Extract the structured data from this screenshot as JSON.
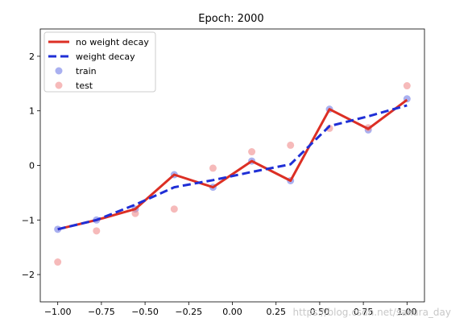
{
  "chart_data": {
    "type": "line",
    "title": "Epoch: 2000",
    "xlabel": "",
    "ylabel": "",
    "xlim": [
      -1.1,
      1.1
    ],
    "ylim": [
      -2.5,
      2.5
    ],
    "xticks": [
      -1.0,
      -0.75,
      -0.5,
      -0.25,
      0.0,
      0.25,
      0.5,
      0.75,
      1.0
    ],
    "xtick_labels": [
      "−1.00",
      "−0.75",
      "−0.50",
      "−0.25",
      "0.00",
      "0.25",
      "0.50",
      "0.75",
      "1.00"
    ],
    "yticks": [
      -2,
      -1,
      0,
      1,
      2
    ],
    "ytick_labels": [
      "−2",
      "−1",
      "0",
      "1",
      "2"
    ],
    "grid": false,
    "legend_position": "upper-left",
    "series": [
      {
        "name": "no weight decay",
        "kind": "line",
        "style": "solid",
        "color": "#dc2f24",
        "x": [
          -1.0,
          -0.778,
          -0.556,
          -0.333,
          -0.111,
          0.111,
          0.333,
          0.556,
          0.778,
          1.0
        ],
        "y": [
          -1.17,
          -1.0,
          -0.8,
          -0.17,
          -0.4,
          0.08,
          -0.28,
          1.03,
          0.67,
          1.2
        ]
      },
      {
        "name": "weight decay",
        "kind": "line",
        "style": "dashed",
        "color": "#1f2fd6",
        "x": [
          -1.0,
          -0.778,
          -0.556,
          -0.333,
          -0.111,
          0.111,
          0.333,
          0.556,
          0.778,
          1.0
        ],
        "y": [
          -1.17,
          -1.0,
          -0.72,
          -0.4,
          -0.27,
          -0.12,
          0.02,
          0.72,
          0.9,
          1.1
        ]
      },
      {
        "name": "train",
        "kind": "scatter",
        "color": "#6f7be6",
        "x": [
          -1.0,
          -0.778,
          -0.556,
          -0.333,
          -0.111,
          0.111,
          0.333,
          0.556,
          0.778,
          1.0
        ],
        "y": [
          -1.17,
          -1.0,
          -0.8,
          -0.17,
          -0.4,
          0.08,
          -0.28,
          1.03,
          0.65,
          1.22
        ]
      },
      {
        "name": "test",
        "kind": "scatter",
        "color": "#f08c8c",
        "x": [
          -1.0,
          -0.778,
          -0.556,
          -0.333,
          -0.111,
          0.111,
          0.333,
          0.556,
          0.778,
          1.0
        ],
        "y": [
          -1.77,
          -1.2,
          -0.88,
          -0.8,
          -0.05,
          0.25,
          0.37,
          0.68,
          0.69,
          1.46
        ]
      }
    ],
    "watermark": "https://blog.csdn.net/sakura_day"
  }
}
